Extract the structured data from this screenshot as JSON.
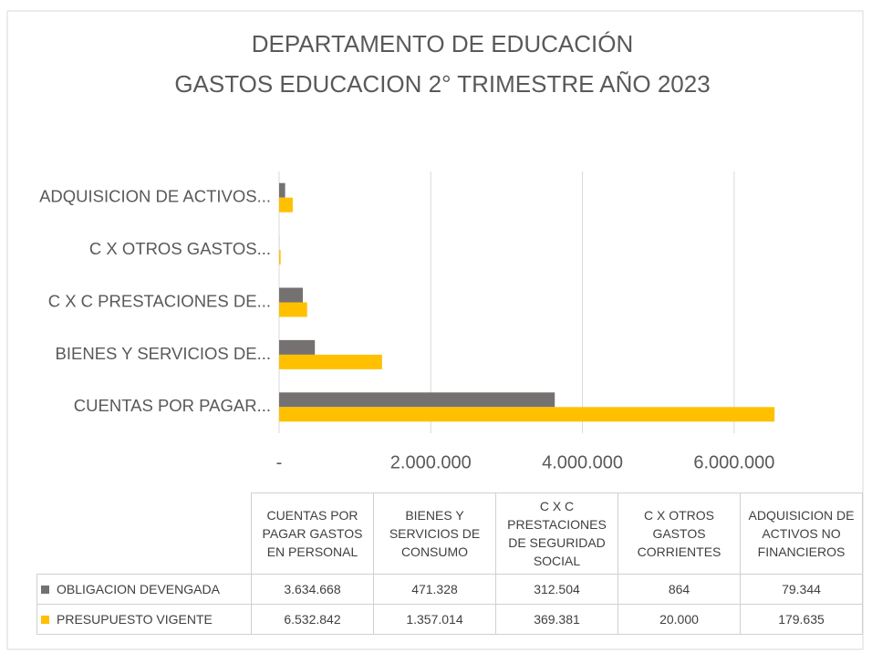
{
  "chart_data": {
    "type": "hbar",
    "title": "DEPARTAMENTO DE EDUCACIÓN",
    "subtitle": "GASTOS EDUCACION 2° TRIMESTRE AÑO 2023",
    "categories": [
      "CUENTAS POR PAGAR GASTOS EN PERSONAL",
      "BIENES Y SERVICIOS DE CONSUMO",
      "C X C PRESTACIONES DE SEGURIDAD SOCIAL",
      "C X OTROS GASTOS CORRIENTES",
      "ADQUISICION DE ACTIVOS NO FINANCIEROS"
    ],
    "category_labels": [
      "CUENTAS POR PAGAR...",
      "BIENES Y SERVICIOS DE...",
      "C X C PRESTACIONES DE...",
      "C X OTROS GASTOS...",
      "ADQUISICION DE ACTIVOS..."
    ],
    "series": [
      {
        "name": "OBLIGACION DEVENGADA",
        "color": "#767171",
        "values": [
          3634668,
          471328,
          312504,
          864,
          79344
        ],
        "value_labels": [
          "3.634.668",
          "471.328",
          "312.504",
          "864",
          "79.344"
        ]
      },
      {
        "name": "PRESUPUESTO VIGENTE",
        "color": "#ffc000",
        "values": [
          6532842,
          1357014,
          369381,
          20000,
          179635
        ],
        "value_labels": [
          "6.532.842",
          "1.357.014",
          "369.381",
          "20.000",
          "179.635"
        ]
      }
    ],
    "xlim": [
      0,
      7000000
    ],
    "xticks": [
      {
        "value": 0,
        "label": "-"
      },
      {
        "value": 2000000,
        "label": "2.000.000"
      },
      {
        "value": 4000000,
        "label": "4.000.000"
      },
      {
        "value": 6000000,
        "label": "6.000.000"
      }
    ],
    "grid": true
  }
}
